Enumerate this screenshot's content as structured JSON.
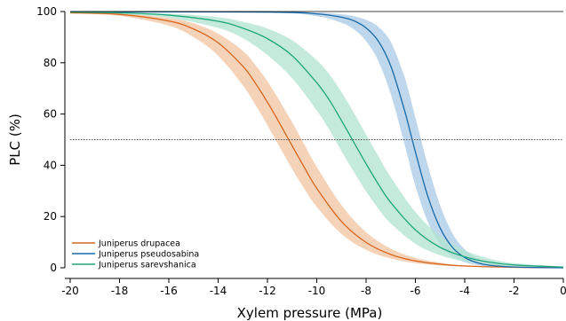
{
  "chart_data": {
    "type": "line",
    "xlabel": "Xylem pressure (MPa)",
    "ylabel": "PLC (%)",
    "xlim": [
      -20,
      0
    ],
    "ylim": [
      0,
      100
    ],
    "x_ticks": [
      "-20",
      "-18",
      "-16",
      "-14",
      "-12",
      "-10",
      "-8",
      "-6",
      "-4",
      "-2",
      "0"
    ],
    "y_ticks": [
      "0",
      "20",
      "40",
      "60",
      "80",
      "100"
    ],
    "reference_line_y": 50,
    "grid": false,
    "legend_position": "bottom-left",
    "series": [
      {
        "name": "Juniperus drupacea",
        "color": "#d9661f",
        "band_color": "#f2c4a0",
        "x": [
          -20,
          -18,
          -16,
          -15,
          -14,
          -13,
          -12.5,
          -12,
          -11.6,
          -11,
          -10.5,
          -10,
          -9,
          -8,
          -7,
          -6,
          -5,
          -4,
          -2,
          0
        ],
        "values": [
          99.5,
          98.9,
          96.3,
          93.2,
          87.8,
          78.7,
          72.2,
          64.6,
          58.0,
          47.6,
          39.1,
          31.0,
          18.1,
          9.9,
          5.2,
          2.7,
          1.4,
          0.7,
          0.2,
          0.1
        ],
        "lower": [
          99.2,
          98.3,
          94.5,
          90.0,
          82.8,
          71.2,
          63.8,
          55.6,
          48.8,
          38.6,
          30.8,
          23.8,
          13.2,
          7.0,
          3.6,
          1.8,
          0.9,
          0.5,
          0.1,
          0.0
        ],
        "upper": [
          99.7,
          99.3,
          97.5,
          95.4,
          91.4,
          84.7,
          79.3,
          72.8,
          66.6,
          56.8,
          48.0,
          39.4,
          24.5,
          13.9,
          7.5,
          3.9,
          2.0,
          1.0,
          0.3,
          0.1
        ]
      },
      {
        "name": "Juniperus pseudosabina",
        "color": "#1a6aa8",
        "band_color": "#a8c9e6",
        "x": [
          -20,
          -12,
          -10,
          -9,
          -8.5,
          -8,
          -7.5,
          -7,
          -6.5,
          -6.3,
          -6,
          -5.5,
          -5,
          -4.5,
          -4,
          -3.5,
          -3,
          -2,
          -1,
          0
        ],
        "values": [
          99.9,
          99.8,
          99.1,
          97.8,
          96.4,
          93.6,
          88.4,
          78.8,
          63.4,
          56.4,
          45.2,
          28.0,
          15.6,
          8.0,
          4.0,
          2.0,
          1.0,
          0.3,
          0.1,
          0.0
        ],
        "lower": [
          99.8,
          99.5,
          98.2,
          95.6,
          93.1,
          88.5,
          80.6,
          67.8,
          50.4,
          43.0,
          32.0,
          18.0,
          9.2,
          4.5,
          2.2,
          1.1,
          0.5,
          0.1,
          0.0,
          0.0
        ],
        "upper": [
          100.0,
          99.9,
          99.6,
          98.9,
          98.2,
          96.8,
          94.0,
          88.2,
          76.2,
          69.8,
          58.6,
          40.2,
          24.5,
          13.5,
          7.2,
          3.8,
          1.9,
          0.5,
          0.1,
          0.0
        ]
      },
      {
        "name": "Juniperus sarevshanica",
        "color": "#1fa67a",
        "band_color": "#b0e3d0",
        "x": [
          -20,
          -18,
          -16,
          -14,
          -13,
          -12,
          -11,
          -10,
          -9.5,
          -9,
          -8.5,
          -8,
          -7.5,
          -7,
          -6,
          -5,
          -4,
          -3,
          -2,
          0
        ],
        "values": [
          99.8,
          99.5,
          98.6,
          96.2,
          93.5,
          89.4,
          82.8,
          72.2,
          65.6,
          57.5,
          49.0,
          40.6,
          32.6,
          25.5,
          14.8,
          8.0,
          4.3,
          2.2,
          1.1,
          0.3
        ],
        "lower": [
          99.6,
          99.1,
          97.6,
          93.6,
          89.6,
          83.0,
          74.0,
          61.4,
          54.0,
          45.6,
          37.5,
          29.8,
          23.0,
          17.3,
          9.4,
          4.9,
          2.5,
          1.3,
          0.6,
          0.1
        ],
        "upper": [
          99.9,
          99.7,
          99.2,
          97.8,
          96.0,
          93.4,
          88.8,
          81.0,
          75.6,
          68.6,
          60.5,
          52.0,
          43.5,
          35.4,
          21.8,
          12.4,
          6.8,
          3.6,
          1.8,
          0.4
        ]
      }
    ]
  }
}
